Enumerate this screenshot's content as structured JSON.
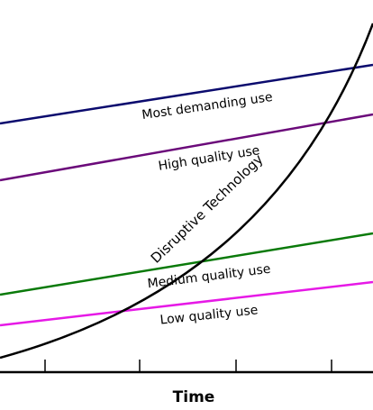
{
  "diagram": {
    "levels": [
      {
        "label": "Most demanding use"
      },
      {
        "label": "High quality use"
      },
      {
        "label": "Medium quality use"
      },
      {
        "label": "Low quality use"
      }
    ],
    "curve_label": "Disruptive Technology",
    "axis_label": "Time"
  }
}
